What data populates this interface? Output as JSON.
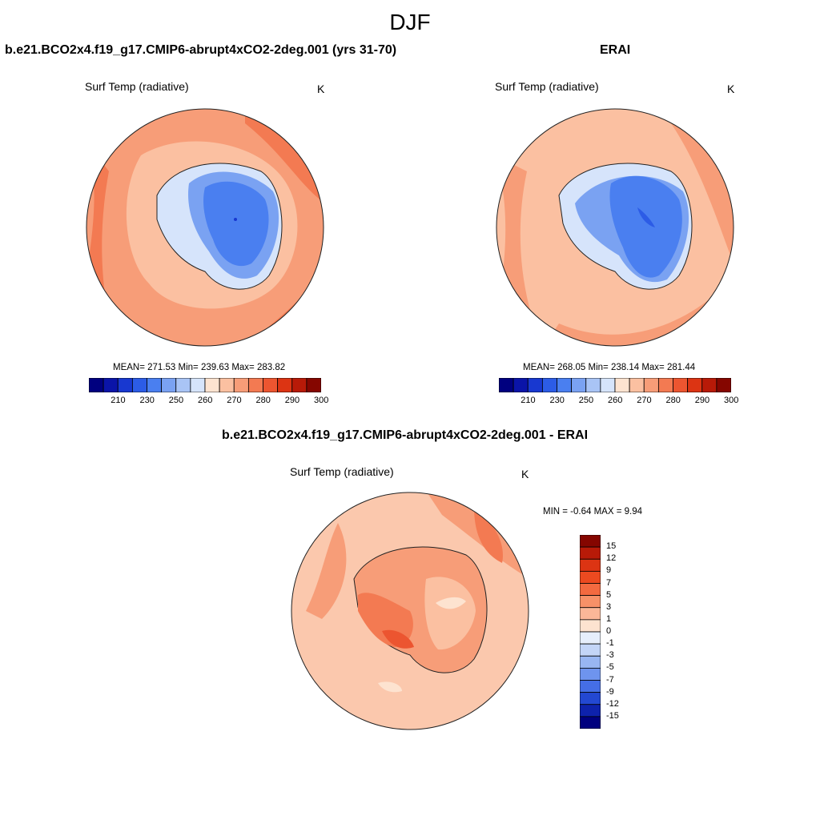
{
  "title": "DJF",
  "panels": [
    {
      "id": "model",
      "title": "b.e21.BCO2x4.f19_g17.CMIP6-abrupt4xCO2-2deg.001 (yrs 31-70)",
      "variable": "Surf Temp (radiative)",
      "units": "K",
      "stats": "MEAN= 271.53  Min= 239.63  Max= 283.82",
      "mean": 271.53,
      "min": 239.63,
      "max": 283.82
    },
    {
      "id": "obs",
      "title": "ERAI",
      "variable": "Surf Temp (radiative)",
      "units": "K",
      "stats": "MEAN= 268.05  Min= 238.14  Max= 281.44",
      "mean": 268.05,
      "min": 238.14,
      "max": 281.44
    },
    {
      "id": "diff",
      "title": "b.e21.BCO2x4.f19_g17.CMIP6-abrupt4xCO2-2deg.001 - ERAI",
      "variable": "Surf Temp (radiative)",
      "units": "K",
      "stats": "MIN =  -0.64 MAX =   9.94",
      "min": -0.64,
      "max": 9.94
    }
  ],
  "colorbar_abs": {
    "ticks": [
      "210",
      "230",
      "250",
      "260",
      "270",
      "280",
      "290",
      "300"
    ],
    "colors": [
      "#00007f",
      "#0a14a8",
      "#1838d0",
      "#2c5ce6",
      "#4a7ff0",
      "#7aa2f2",
      "#a9c4f5",
      "#d6e4fb",
      "#fde3d0",
      "#fbc0a1",
      "#f79d78",
      "#f37a52",
      "#ec5530",
      "#dc3413",
      "#b81a08",
      "#850600"
    ]
  },
  "colorbar_diff": {
    "ticks": [
      "15",
      "12",
      "9",
      "7",
      "5",
      "3",
      "1",
      "0",
      "-1",
      "-3",
      "-5",
      "-7",
      "-9",
      "-12",
      "-15"
    ],
    "colors": [
      "#850600",
      "#b81a08",
      "#dc3413",
      "#ec4a20",
      "#f36a40",
      "#f79168",
      "#fbb798",
      "#fde3d0",
      "#e6eefb",
      "#c3d5f7",
      "#98b6f2",
      "#6e94ee",
      "#456ee6",
      "#2348d2",
      "#0e22ac",
      "#00007f"
    ]
  },
  "colors": {
    "ocean_warm": "#f79d78",
    "ocean_light": "#fbc0a1",
    "ocean_hot": "#f37a52",
    "ice_blue": "#4a7ff0",
    "ice_light": "#d6e4fb",
    "diff_bg": "#fbc8ad"
  }
}
